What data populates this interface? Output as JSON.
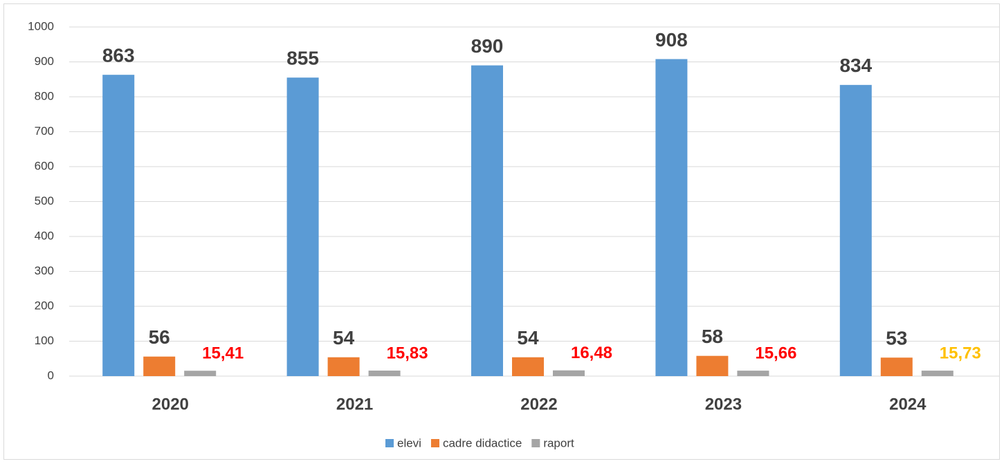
{
  "chart_data": {
    "type": "bar",
    "categories": [
      "2020",
      "2021",
      "2022",
      "2023",
      "2024"
    ],
    "series": [
      {
        "name": "elevi",
        "color": "#5b9bd5",
        "values": [
          863,
          855,
          890,
          908,
          834
        ]
      },
      {
        "name": "cadre didactice",
        "color": "#ed7d31",
        "values": [
          56,
          54,
          54,
          58,
          53
        ]
      },
      {
        "name": "raport",
        "color": "#a5a5a5",
        "values": [
          15.41,
          15.83,
          16.48,
          15.66,
          15.73
        ],
        "value_labels": [
          "15,41",
          "15,83",
          "16,48",
          "15,66",
          "15,73"
        ],
        "value_label_colors": [
          "#ff0000",
          "#ff0000",
          "#ff0000",
          "#ff0000",
          "#ffc000"
        ]
      }
    ],
    "ylim": [
      0,
      1000
    ],
    "yticks": [
      0,
      100,
      200,
      300,
      400,
      500,
      600,
      700,
      800,
      900,
      1000
    ],
    "grid": true,
    "legend": "bottom"
  }
}
